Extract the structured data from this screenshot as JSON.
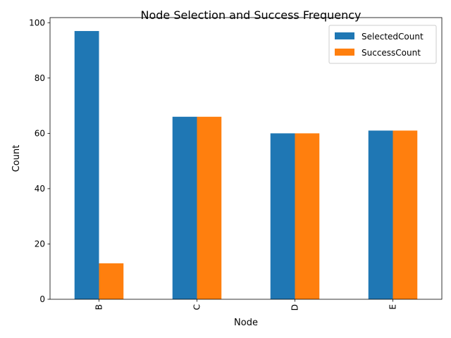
{
  "chart_data": {
    "type": "bar",
    "title": "Node Selection and Success Frequency",
    "xlabel": "Node",
    "ylabel": "Count",
    "categories": [
      "B",
      "C",
      "D",
      "E"
    ],
    "series": [
      {
        "name": "SelectedCount",
        "values": [
          97,
          66,
          60,
          61
        ],
        "color": "#1f77b4"
      },
      {
        "name": "SuccessCount",
        "values": [
          13,
          66,
          60,
          61
        ],
        "color": "#ff7f0e"
      }
    ],
    "ylim": [
      0,
      101.85
    ],
    "yticks": [
      0,
      20,
      40,
      60,
      80,
      100
    ],
    "grid": false,
    "legend_position": "top-right",
    "xtick_rotation": "vertical"
  }
}
